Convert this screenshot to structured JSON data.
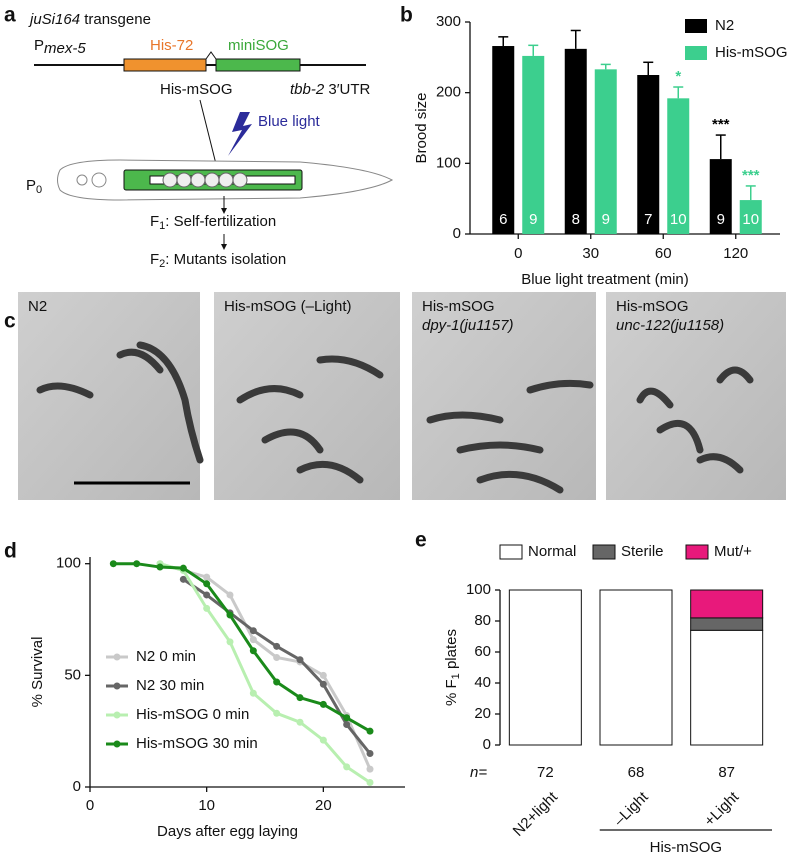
{
  "panel_labels": [
    "a",
    "b",
    "c",
    "d",
    "e"
  ],
  "diagram": {
    "transgene": "juSi164",
    "transgene_suffix": " transgene",
    "promoter": "P",
    "promoter_sub": "mex-5",
    "gene1": "His-72",
    "gene2": "miniSOG",
    "utr_gene": "tbb-2",
    "utr": " 3′UTR",
    "fusion": "His-mSOG",
    "light": "Blue light",
    "p0": "P",
    "p0_sub": "0",
    "f1": "F",
    "f1_sub": "1",
    "f1_text": ": Self-fertilization",
    "f2": "F",
    "f2_sub": "2",
    "f2_text": ": Mutants isolation"
  },
  "micrographs": [
    {
      "label": "N2"
    },
    {
      "label": "His-mSOG (–Light)"
    },
    {
      "label": "His-mSOG",
      "allele": "dpy-1(ju1157)"
    },
    {
      "label": "His-mSOG",
      "allele": "unc-122(ju1158)"
    }
  ],
  "chart_data": [
    {
      "type": "bar",
      "ylabel": "Brood size",
      "xlabel": "Blue light treatment (min)",
      "categories": [
        "0",
        "30",
        "60",
        "120"
      ],
      "ylim": [
        0,
        300
      ],
      "yticks": [
        0,
        100,
        200,
        300
      ],
      "legend": "upper right",
      "series": [
        {
          "name": "N2",
          "color": "#000000",
          "values": [
            266,
            262,
            225,
            106
          ],
          "errors": [
            13,
            26,
            18,
            34
          ],
          "n": [
            6,
            8,
            7,
            9
          ],
          "significance": [
            null,
            null,
            null,
            "***"
          ]
        },
        {
          "name": "His-mSOG",
          "color": "#3ccf8e",
          "values": [
            252,
            233,
            192,
            48
          ],
          "errors": [
            15,
            7,
            16,
            20
          ],
          "n": [
            9,
            9,
            10,
            10
          ],
          "significance": [
            null,
            null,
            "*",
            "***"
          ]
        }
      ]
    },
    {
      "type": "line",
      "xlabel": "Days after egg laying",
      "ylabel": "% Survival",
      "x": [
        2,
        4,
        6,
        8,
        10,
        12,
        14,
        16,
        18,
        20,
        22,
        24
      ],
      "xlim": [
        0,
        27
      ],
      "xticks": [
        0,
        10,
        20
      ],
      "ylim": [
        0,
        103
      ],
      "yticks": [
        0,
        50,
        100
      ],
      "legend": "lower left",
      "series": [
        {
          "name": "N2 0 min",
          "color": "#c9c9c9",
          "values": [
            null,
            null,
            100,
            97,
            94,
            86,
            66,
            58,
            56,
            50,
            32,
            8
          ]
        },
        {
          "name": "N2 30 min",
          "color": "#666666",
          "values": [
            null,
            null,
            null,
            93,
            86,
            78,
            70,
            63,
            57,
            46,
            28,
            15
          ]
        },
        {
          "name": "His-mSOG 0 min",
          "color": "#b8efb0",
          "values": [
            null,
            null,
            100,
            97,
            80,
            65,
            42,
            33,
            29,
            21,
            9,
            2
          ]
        },
        {
          "name": "His-mSOG 30 min",
          "color": "#1a8a1a",
          "values": [
            100,
            100,
            98.5,
            98,
            91,
            77,
            61,
            47,
            40,
            37,
            31,
            25
          ]
        }
      ]
    },
    {
      "type": "stacked_bar",
      "ylabel_parts": [
        "% F",
        "1",
        " plates"
      ],
      "categories": [
        "N2+light",
        "–Light",
        "+Light"
      ],
      "group_label": "His-mSOG",
      "n_prefix": "n=",
      "n": [
        72,
        68,
        87
      ],
      "ylim": [
        0,
        100
      ],
      "yticks": [
        0,
        20,
        40,
        60,
        80,
        100
      ],
      "legend": "top",
      "series": [
        {
          "name": "Normal",
          "color": "#ffffff",
          "values": [
            100,
            100,
            74
          ]
        },
        {
          "name": "Sterile",
          "color": "#666666",
          "values": [
            0,
            0,
            8
          ]
        },
        {
          "name": "Mut/+",
          "color": "#e8197b",
          "values": [
            0,
            0,
            18
          ]
        }
      ]
    }
  ]
}
